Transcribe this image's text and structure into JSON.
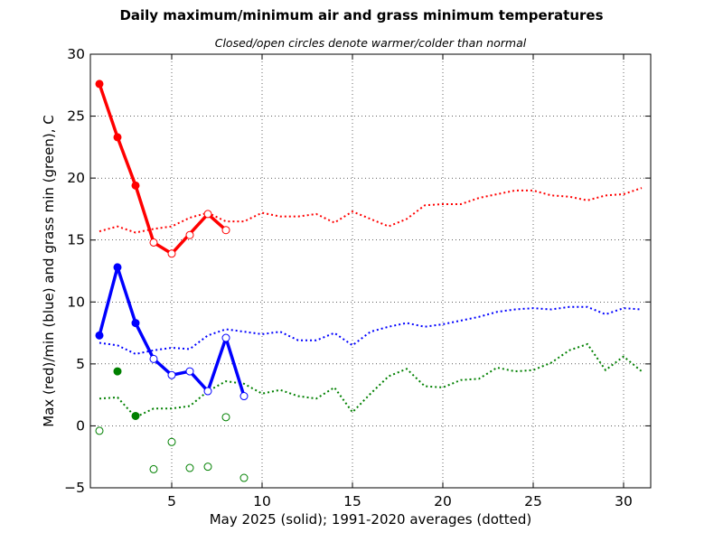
{
  "chart_data": {
    "type": "line",
    "title": "Daily maximum/minimum air and grass minimum temperatures",
    "subtitle": "Closed/open circles denote warmer/colder than normal",
    "xlabel": "May 2025 (solid);  1991-2020 averages (dotted)",
    "ylabel": "Max (red)/min (blue) and grass min (green), C",
    "xlim": [
      0.5,
      31.5
    ],
    "ylim": [
      -5,
      30
    ],
    "xticks": [
      5,
      10,
      15,
      20,
      25,
      30
    ],
    "yticks": [
      -5,
      0,
      5,
      10,
      15,
      20,
      25,
      30
    ],
    "grid": true,
    "colors": {
      "max": "#ff0000",
      "min": "#0000ff",
      "grass": "#008000"
    },
    "actual": {
      "days": [
        1,
        2,
        3,
        4,
        5,
        6,
        7,
        8,
        9
      ],
      "max": [
        27.6,
        23.3,
        19.4,
        14.8,
        13.9,
        null,
        17.1,
        15.8,
        null
      ],
      "min": [
        7.3,
        12.8,
        8.3,
        5.4,
        4.1,
        4.4,
        2.8,
        7.1,
        2.4
      ],
      "grass": [
        -0.4,
        4.4,
        0.8,
        -3.5,
        -1.3,
        -3.4,
        -3.3,
        0.7,
        -4.2
      ]
    },
    "max_markers": [
      {
        "day": 1,
        "value": 27.6,
        "warmer": true
      },
      {
        "day": 2,
        "value": 23.3,
        "warmer": true
      },
      {
        "day": 3,
        "value": 19.4,
        "warmer": true
      },
      {
        "day": 4,
        "value": 14.8,
        "warmer": false
      },
      {
        "day": 5,
        "value": 13.9,
        "warmer": false
      },
      {
        "day": 6,
        "value": 15.4,
        "warmer": false
      },
      {
        "day": 7,
        "value": 17.1,
        "warmer": false
      },
      {
        "day": 8,
        "value": 15.8,
        "warmer": false
      }
    ],
    "min_markers": [
      {
        "day": 1,
        "value": 7.3,
        "warmer": true
      },
      {
        "day": 2,
        "value": 12.8,
        "warmer": true
      },
      {
        "day": 3,
        "value": 8.3,
        "warmer": true
      },
      {
        "day": 4,
        "value": 5.4,
        "warmer": false
      },
      {
        "day": 5,
        "value": 4.1,
        "warmer": false
      },
      {
        "day": 6,
        "value": 4.4,
        "warmer": false
      },
      {
        "day": 7,
        "value": 2.8,
        "warmer": false
      },
      {
        "day": 8,
        "value": 7.1,
        "warmer": false
      },
      {
        "day": 9,
        "value": 2.4,
        "warmer": false
      }
    ],
    "grass_markers": [
      {
        "day": 1,
        "value": -0.4,
        "warmer": false
      },
      {
        "day": 2,
        "value": 4.4,
        "warmer": true
      },
      {
        "day": 3,
        "value": 0.8,
        "warmer": true
      },
      {
        "day": 4,
        "value": -3.5,
        "warmer": false
      },
      {
        "day": 5,
        "value": -1.3,
        "warmer": false
      },
      {
        "day": 6,
        "value": -3.4,
        "warmer": false
      },
      {
        "day": 7,
        "value": -3.3,
        "warmer": false
      },
      {
        "day": 8,
        "value": 0.7,
        "warmer": false
      },
      {
        "day": 9,
        "value": -4.2,
        "warmer": false
      }
    ],
    "max_line": [
      {
        "day": 1,
        "value": 27.6
      },
      {
        "day": 2,
        "value": 23.3
      },
      {
        "day": 3,
        "value": 19.4
      },
      {
        "day": 4,
        "value": 14.8
      },
      {
        "day": 5,
        "value": 13.9
      },
      {
        "day": 7,
        "value": 17.1
      },
      {
        "day": 8,
        "value": 15.8
      }
    ],
    "average": {
      "days": [
        1,
        2,
        3,
        4,
        5,
        6,
        7,
        8,
        9,
        10,
        11,
        12,
        13,
        14,
        15,
        16,
        17,
        18,
        19,
        20,
        21,
        22,
        23,
        24,
        25,
        26,
        27,
        28,
        29,
        30,
        31
      ],
      "max": [
        15.7,
        16.1,
        15.6,
        15.9,
        16.1,
        16.8,
        17.2,
        16.5,
        16.5,
        17.2,
        16.9,
        16.9,
        17.1,
        16.4,
        17.3,
        16.7,
        16.1,
        16.7,
        17.8,
        17.9,
        17.9,
        18.4,
        18.7,
        19.0,
        19.0,
        18.6,
        18.5,
        18.2,
        18.6,
        18.7,
        19.2
      ],
      "min": [
        6.7,
        6.5,
        5.8,
        6.1,
        6.3,
        6.2,
        7.3,
        7.8,
        7.6,
        7.4,
        7.6,
        6.9,
        6.9,
        7.5,
        6.5,
        7.6,
        8.0,
        8.3,
        8.0,
        8.2,
        8.5,
        8.8,
        9.2,
        9.4,
        9.5,
        9.4,
        9.6,
        9.6,
        9.0,
        9.5,
        9.4
      ],
      "grass": [
        2.2,
        2.3,
        0.7,
        1.4,
        1.4,
        1.6,
        2.8,
        3.6,
        3.4,
        2.6,
        2.9,
        2.4,
        2.2,
        3.1,
        1.1,
        2.6,
        4.0,
        4.6,
        3.2,
        3.1,
        3.7,
        3.8,
        4.7,
        4.4,
        4.5,
        5.1,
        6.1,
        6.6,
        4.5,
        5.6,
        4.4
      ]
    }
  }
}
